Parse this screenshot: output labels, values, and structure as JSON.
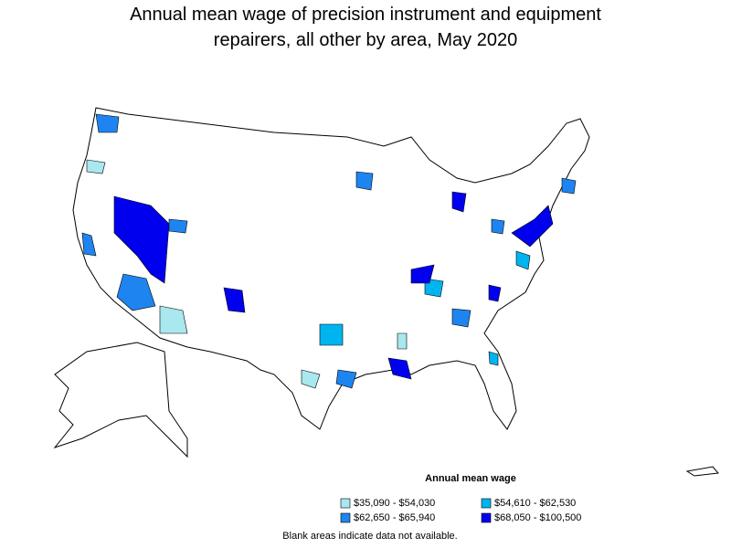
{
  "title": [
    "Annual mean wage of precision instrument and equipment",
    "repairers, all other by area, May 2020"
  ],
  "legend": {
    "title": "Annual mean wage",
    "items": [
      {
        "label": "$35,090 - $54,030",
        "color": "#a8e8ee"
      },
      {
        "label": "$54,610 - $62,530",
        "color": "#00b4f0"
      },
      {
        "label": "$62,650 - $65,940",
        "color": "#1e84f0"
      },
      {
        "label": "$68,050 - $100,500",
        "color": "#0000ee"
      }
    ]
  },
  "note": "Blank areas indicate data not available."
}
